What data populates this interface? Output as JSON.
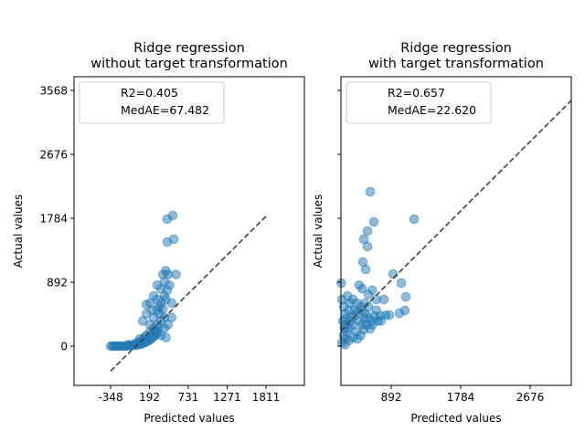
{
  "chart_data": [
    {
      "type": "scatter",
      "title_lines": [
        "Ridge regression",
        "without target transformation"
      ],
      "xlabel": "Predicted values",
      "ylabel": "Actual values",
      "xticks": [
        -348,
        192,
        731,
        1271,
        1811
      ],
      "yticks": [
        0,
        892,
        1784,
        2676,
        3568
      ],
      "xlim": [
        -856,
        2344
      ],
      "ylim": [
        -548,
        3759
      ],
      "legend": {
        "placement": "upper-left",
        "entries": [
          "R2=0.405",
          "MedAE=67.482"
        ]
      },
      "identity_line": {
        "from": [
          -348,
          -348
        ],
        "to": [
          1811,
          1811
        ],
        "style": "dashed",
        "color": "#404040"
      },
      "marker_color": "#1f77b4",
      "points": [
        [
          -348,
          0
        ],
        [
          -320,
          0
        ],
        [
          -300,
          0
        ],
        [
          -270,
          0
        ],
        [
          -250,
          0
        ],
        [
          -220,
          0
        ],
        [
          -200,
          0
        ],
        [
          -170,
          0
        ],
        [
          -150,
          0
        ],
        [
          -120,
          2
        ],
        [
          -100,
          5
        ],
        [
          -70,
          8
        ],
        [
          -50,
          10
        ],
        [
          -20,
          12
        ],
        [
          0,
          15
        ],
        [
          30,
          20
        ],
        [
          50,
          25
        ],
        [
          80,
          30
        ],
        [
          100,
          40
        ],
        [
          130,
          50
        ],
        [
          150,
          60
        ],
        [
          180,
          75
        ],
        [
          200,
          90
        ],
        [
          230,
          110
        ],
        [
          250,
          130
        ],
        [
          280,
          160
        ],
        [
          300,
          180
        ],
        [
          -100,
          20
        ],
        [
          0,
          40
        ],
        [
          50,
          60
        ],
        [
          100,
          80
        ],
        [
          120,
          120
        ],
        [
          150,
          150
        ],
        [
          200,
          200
        ],
        [
          220,
          160
        ],
        [
          250,
          250
        ],
        [
          280,
          220
        ],
        [
          300,
          300
        ],
        [
          320,
          260
        ],
        [
          350,
          350
        ],
        [
          200,
          300
        ],
        [
          250,
          400
        ],
        [
          300,
          500
        ],
        [
          330,
          550
        ],
        [
          350,
          600
        ],
        [
          400,
          700
        ],
        [
          300,
          650
        ],
        [
          200,
          600
        ],
        [
          150,
          580
        ],
        [
          350,
          800
        ],
        [
          400,
          900
        ],
        [
          380,
          1000
        ],
        [
          420,
          1050
        ],
        [
          450,
          1000
        ],
        [
          400,
          250
        ],
        [
          450,
          300
        ],
        [
          500,
          400
        ],
        [
          350,
          150
        ],
        [
          420,
          120
        ],
        [
          100,
          350
        ],
        [
          150,
          450
        ],
        [
          250,
          700
        ],
        [
          300,
          850
        ],
        [
          439,
          1771
        ],
        [
          515,
          1822
        ],
        [
          439,
          1452
        ],
        [
          528,
          1491
        ],
        [
          560,
          1000
        ],
        [
          230,
          500
        ],
        [
          330,
          450
        ],
        [
          280,
          200
        ],
        [
          180,
          120
        ],
        [
          60,
          100
        ],
        [
          500,
          600
        ],
        [
          470,
          850
        ],
        [
          400,
          400
        ],
        [
          380,
          520
        ],
        [
          420,
          650
        ],
        [
          440,
          780
        ]
      ]
    },
    {
      "type": "scatter",
      "title_lines": [
        "Ridge regression",
        "with target transformation"
      ],
      "xlabel": "Predicted values",
      "ylabel": "Actual values",
      "xticks": [
        892,
        1784,
        2676
      ],
      "yticks": [
        0,
        892,
        1784,
        2676,
        3568
      ],
      "ytick_labels_shown": false,
      "xlim": [
        246,
        3205
      ],
      "ylim": [
        -548,
        3759
      ],
      "legend": {
        "placement": "upper-left",
        "entries": [
          "R2=0.657",
          "MedAE=22.620"
        ]
      },
      "identity_line": {
        "from": [
          246,
          217
        ],
        "to": [
          3205,
          3427
        ],
        "style": "dashed",
        "color": "#404040"
      },
      "marker_color": "#1f77b4",
      "points": [
        [
          622,
          2153
        ],
        [
          669,
          1733
        ],
        [
          1186,
          1771
        ],
        [
          587,
          1605
        ],
        [
          540,
          1491
        ],
        [
          587,
          1389
        ],
        [
          528,
          1172
        ],
        [
          564,
          1070
        ],
        [
          916,
          1006
        ],
        [
          1021,
          879
        ],
        [
          998,
          459
        ],
        [
          1068,
          497
        ],
        [
          869,
          433
        ],
        [
          1080,
          688
        ],
        [
          798,
          650
        ],
        [
          250,
          879
        ],
        [
          480,
          850
        ],
        [
          520,
          800
        ],
        [
          600,
          720
        ],
        [
          650,
          780
        ],
        [
          700,
          500
        ],
        [
          750,
          420
        ],
        [
          820,
          430
        ],
        [
          760,
          350
        ],
        [
          300,
          300
        ],
        [
          320,
          200
        ],
        [
          280,
          150
        ],
        [
          300,
          100
        ],
        [
          350,
          250
        ],
        [
          400,
          300
        ],
        [
          380,
          400
        ],
        [
          420,
          500
        ],
        [
          450,
          600
        ],
        [
          500,
          550
        ],
        [
          550,
          600
        ],
        [
          480,
          350
        ],
        [
          520,
          300
        ],
        [
          560,
          450
        ],
        [
          600,
          400
        ],
        [
          640,
          350
        ],
        [
          680,
          420
        ],
        [
          700,
          650
        ],
        [
          300,
          450
        ],
        [
          350,
          500
        ],
        [
          280,
          550
        ],
        [
          260,
          650
        ],
        [
          330,
          700
        ],
        [
          360,
          600
        ],
        [
          400,
          650
        ],
        [
          440,
          200
        ],
        [
          500,
          150
        ],
        [
          460,
          100
        ],
        [
          540,
          230
        ],
        [
          580,
          300
        ],
        [
          620,
          240
        ],
        [
          260,
          50
        ],
        [
          300,
          20
        ],
        [
          350,
          80
        ],
        [
          400,
          120
        ],
        [
          520,
          500
        ],
        [
          600,
          550
        ],
        [
          270,
          350
        ],
        [
          310,
          380
        ],
        [
          290,
          250
        ],
        [
          360,
          330
        ],
        [
          420,
          420
        ],
        [
          470,
          480
        ],
        [
          550,
          380
        ],
        [
          650,
          300
        ],
        [
          720,
          350
        ]
      ]
    }
  ]
}
